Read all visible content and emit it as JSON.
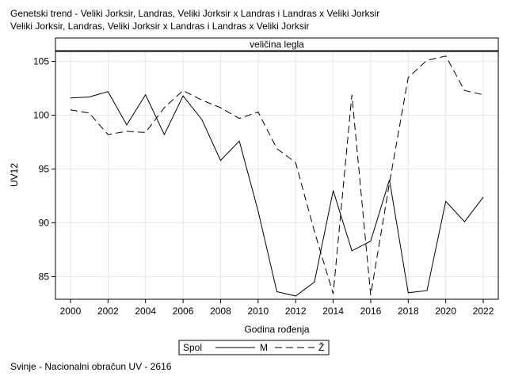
{
  "title_line1": "Genetski trend - Veliki Jorksir, Landras, Veliki Jorksir x Landras i Landras x Veliki Jorksir",
  "title_line2": "Veliki Jorksir, Landras, Veliki Jorksir x Landras i Landras x Veliki Jorksir",
  "footer": "Svinje - Nacionalni obračun UV - 2616",
  "chart_data": {
    "type": "line",
    "panel_label": "veličina legla",
    "xlabel": "Godina rođenja",
    "ylabel": "UV12",
    "xlim": [
      1999.2,
      2022.8
    ],
    "ylim": [
      82.9,
      106.0
    ],
    "x_ticks": [
      2000,
      2002,
      2004,
      2006,
      2008,
      2010,
      2012,
      2014,
      2016,
      2018,
      2020,
      2022
    ],
    "y_ticks": [
      85,
      90,
      95,
      100,
      105
    ],
    "grid": true,
    "legend": {
      "title": "Spol",
      "placement": "bottom-center"
    },
    "x": [
      2000,
      2001,
      2002,
      2003,
      2004,
      2005,
      2006,
      2007,
      2008,
      2009,
      2010,
      2011,
      2012,
      2013,
      2014,
      2015,
      2016,
      2017,
      2018,
      2019,
      2020,
      2021,
      2022
    ],
    "series": [
      {
        "name": "M",
        "dash": "solid",
        "color": "#000000",
        "values": [
          101.6,
          101.7,
          102.2,
          99.1,
          101.9,
          98.2,
          101.8,
          99.6,
          95.8,
          97.6,
          91.1,
          83.6,
          83.2,
          84.5,
          93.0,
          87.4,
          88.3,
          94.0,
          83.5,
          83.7,
          92.0,
          90.1,
          92.4
        ]
      },
      {
        "name": "Ž",
        "dash": "dashed",
        "color": "#000000",
        "values": [
          100.5,
          100.2,
          98.2,
          98.5,
          98.4,
          100.7,
          102.3,
          101.4,
          100.7,
          99.7,
          100.3,
          96.9,
          95.6,
          89.2,
          83.4,
          101.9,
          83.3,
          93.7,
          103.5,
          105.1,
          105.5,
          102.3,
          101.9
        ]
      }
    ]
  }
}
